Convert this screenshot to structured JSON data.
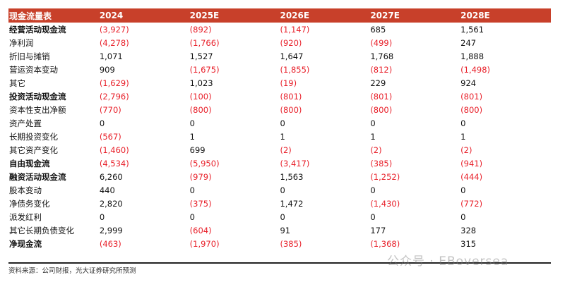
{
  "header": [
    "现金流量表",
    "2024",
    "2025E",
    "2026E",
    "2027E",
    "2028E"
  ],
  "rows": [
    {
      "label": "经营活动现金流",
      "bold": true,
      "values": [
        "(3,927)",
        "(892)",
        "(1,147)",
        "685",
        "1,561"
      ]
    },
    {
      "label": "净利润",
      "bold": false,
      "values": [
        "(4,278)",
        "(1,766)",
        "(920)",
        "(499)",
        "247"
      ]
    },
    {
      "label": "折旧与摊销",
      "bold": false,
      "values": [
        "1,071",
        "1,527",
        "1,647",
        "1,768",
        "1,888"
      ]
    },
    {
      "label": "营运资本变动",
      "bold": false,
      "values": [
        "909",
        "(1,675)",
        "(1,855)",
        "(812)",
        "(1,498)"
      ]
    },
    {
      "label": "其它",
      "bold": false,
      "values": [
        "(1,629)",
        "1,023",
        "(19)",
        "229",
        "924"
      ]
    },
    {
      "label": "投资活动现金流",
      "bold": true,
      "values": [
        "(2,796)",
        "(100)",
        "(801)",
        "(801)",
        "(801)"
      ]
    },
    {
      "label": "资本性支出净额",
      "bold": false,
      "values": [
        "(770)",
        "(800)",
        "(800)",
        "(800)",
        "(800)"
      ]
    },
    {
      "label": "资产处置",
      "bold": false,
      "values": [
        "0",
        "0",
        "0",
        "0",
        "0"
      ]
    },
    {
      "label": "长期投资变化",
      "bold": false,
      "values": [
        "(567)",
        "1",
        "1",
        "1",
        "1"
      ]
    },
    {
      "label": "其它资产变化",
      "bold": false,
      "values": [
        "(1,460)",
        "699",
        "(2)",
        "(2)",
        "(2)"
      ]
    },
    {
      "label": "自由现金流",
      "bold": true,
      "values": [
        "(4,534)",
        "(5,950)",
        "(3,417)",
        "(385)",
        "(941)"
      ]
    },
    {
      "label": "融资活动现金流",
      "bold": true,
      "values": [
        "6,260",
        "(979)",
        "1,563",
        "(1,252)",
        "(444)"
      ]
    },
    {
      "label": "股本变动",
      "bold": false,
      "values": [
        "440",
        "0",
        "0",
        "0",
        "0"
      ]
    },
    {
      "label": "净债务变化",
      "bold": false,
      "values": [
        "2,820",
        "(375)",
        "1,472",
        "(1,430)",
        "(772)"
      ]
    },
    {
      "label": "派发红利",
      "bold": false,
      "values": [
        "0",
        "0",
        "0",
        "0",
        "0"
      ]
    },
    {
      "label": "其它长期负债变化",
      "bold": false,
      "values": [
        "2,999",
        "(604)",
        "91",
        "177",
        "328"
      ]
    },
    {
      "label": "净现金流",
      "bold": true,
      "values": [
        "(463)",
        "(1,970)",
        "(385)",
        "(1,368)",
        "315"
      ]
    }
  ],
  "colors": {
    "header_bg": "#c8402a",
    "negative": "#e8202a"
  },
  "footnote": "资料来源：公司财报，光大证券研究所预测",
  "watermark": "公众号 · EBoversea"
}
